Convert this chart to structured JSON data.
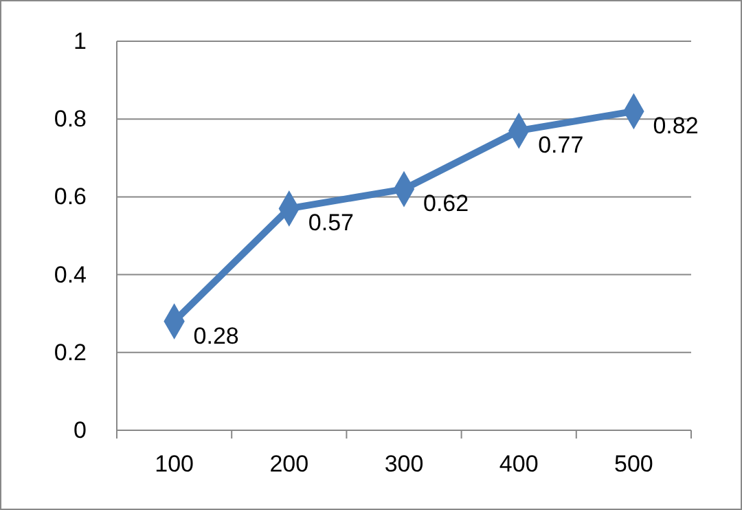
{
  "chart_data": {
    "type": "line",
    "categories": [
      "100",
      "200",
      "300",
      "400",
      "500"
    ],
    "series": [
      {
        "color": "#4a7ebb",
        "values": [
          0.28,
          0.57,
          0.62,
          0.77,
          0.82
        ]
      }
    ],
    "ylim": [
      0,
      1
    ],
    "yticks": [
      0,
      0.2,
      0.4,
      0.6,
      0.8,
      1
    ],
    "grid": "y",
    "marker": "diamond",
    "data_labels": true
  }
}
